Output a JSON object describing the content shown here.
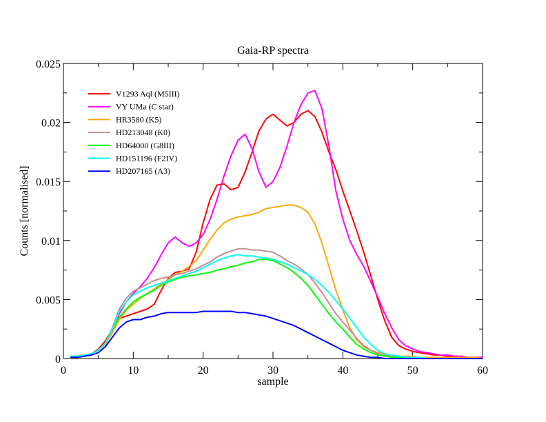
{
  "chart_data": {
    "type": "line",
    "title": "Gaia-RP spectra",
    "xlabel": "sample",
    "ylabel": "Counts [normalised]",
    "xlim": [
      0,
      60
    ],
    "ylim": [
      0,
      0.025
    ],
    "x_ticks": [
      0,
      10,
      20,
      30,
      40,
      50,
      60
    ],
    "x_tick_labels": [
      "0",
      "10",
      "20",
      "30",
      "40",
      "50",
      "60"
    ],
    "y_ticks": [
      0,
      0.005,
      0.01,
      0.015,
      0.02,
      0.025
    ],
    "y_tick_labels": [
      "0",
      "0.005",
      "0.01",
      "0.015",
      "0.02",
      "0.025"
    ],
    "grid": false,
    "legend_position": "top-left",
    "x": [
      1,
      2,
      3,
      4,
      5,
      6,
      7,
      8,
      9,
      10,
      11,
      12,
      13,
      14,
      15,
      16,
      17,
      18,
      19,
      20,
      21,
      22,
      23,
      24,
      25,
      26,
      27,
      28,
      29,
      30,
      31,
      32,
      33,
      34,
      35,
      36,
      37,
      38,
      39,
      40,
      41,
      42,
      43,
      44,
      45,
      46,
      47,
      48,
      49,
      50,
      51,
      52,
      53,
      54,
      55,
      56,
      57,
      58,
      59,
      60
    ],
    "series": [
      {
        "name": "V1293 Aql (M5III)",
        "color": "#ff0000",
        "values": [
          0.0002,
          0.0002,
          0.0003,
          0.0004,
          0.0008,
          0.0015,
          0.0025,
          0.0034,
          0.0036,
          0.0038,
          0.004,
          0.0042,
          0.0046,
          0.0058,
          0.0068,
          0.0073,
          0.0074,
          0.0076,
          0.009,
          0.0115,
          0.0135,
          0.0147,
          0.0148,
          0.0143,
          0.0145,
          0.0158,
          0.0175,
          0.0193,
          0.0203,
          0.0207,
          0.0202,
          0.0197,
          0.02,
          0.0207,
          0.021,
          0.0205,
          0.0192,
          0.0175,
          0.016,
          0.0142,
          0.0125,
          0.0108,
          0.009,
          0.007,
          0.005,
          0.0032,
          0.0018,
          0.0011,
          0.0008,
          0.0006,
          0.0005,
          0.0004,
          0.0003,
          0.0003,
          0.0002,
          0.0002,
          0.0002,
          0.0001,
          0.0001,
          0.0001
        ]
      },
      {
        "name": "VY UMa (C star)",
        "color": "#ff00ff",
        "values": [
          0.0002,
          0.0002,
          0.0003,
          0.0004,
          0.0007,
          0.0012,
          0.0022,
          0.0038,
          0.0048,
          0.0055,
          0.0061,
          0.0068,
          0.0077,
          0.0088,
          0.0098,
          0.0103,
          0.0098,
          0.0095,
          0.0098,
          0.0105,
          0.0118,
          0.0135,
          0.0155,
          0.0172,
          0.0185,
          0.019,
          0.0178,
          0.0158,
          0.0145,
          0.015,
          0.0162,
          0.018,
          0.02,
          0.0215,
          0.0225,
          0.0227,
          0.0212,
          0.018,
          0.0142,
          0.0118,
          0.01,
          0.0088,
          0.0078,
          0.0065,
          0.0052,
          0.0038,
          0.0026,
          0.0016,
          0.0011,
          0.0008,
          0.0006,
          0.0005,
          0.0004,
          0.0003,
          0.0003,
          0.0002,
          0.0002,
          0.0001,
          0.0001,
          0.0001
        ]
      },
      {
        "name": "HR3580 (K5)",
        "color": "#ffa500",
        "values": [
          0.0002,
          0.0002,
          0.0003,
          0.0004,
          0.0007,
          0.0012,
          0.0022,
          0.0033,
          0.0041,
          0.0046,
          0.0051,
          0.0055,
          0.0059,
          0.0063,
          0.0067,
          0.0071,
          0.0074,
          0.0078,
          0.0083,
          0.0092,
          0.0101,
          0.0109,
          0.0115,
          0.0118,
          0.012,
          0.0121,
          0.0122,
          0.0124,
          0.0127,
          0.0128,
          0.0129,
          0.013,
          0.013,
          0.0128,
          0.0124,
          0.0114,
          0.0098,
          0.0078,
          0.0058,
          0.0041,
          0.0026,
          0.0016,
          0.001,
          0.0007,
          0.0005,
          0.0004,
          0.0003,
          0.0002,
          0.0002,
          0.0002,
          0.0001,
          0.0001,
          0.0001,
          0.0001,
          0.0001,
          0.0001,
          0.0001,
          0.0001,
          0.0001,
          0.0
        ]
      },
      {
        "name": "HD213048 (K0)",
        "color": "#bc8f8f",
        "values": [
          0.0002,
          0.0002,
          0.0003,
          0.0004,
          0.0007,
          0.0013,
          0.0026,
          0.0042,
          0.0051,
          0.0057,
          0.006,
          0.0063,
          0.0066,
          0.0068,
          0.0069,
          0.0071,
          0.0072,
          0.0074,
          0.0076,
          0.0079,
          0.0082,
          0.0086,
          0.0089,
          0.0091,
          0.0093,
          0.0093,
          0.0092,
          0.0092,
          0.0091,
          0.009,
          0.0087,
          0.0083,
          0.008,
          0.0076,
          0.0071,
          0.0064,
          0.0056,
          0.0047,
          0.0038,
          0.0031,
          0.0024,
          0.0017,
          0.0011,
          0.0007,
          0.0004,
          0.0003,
          0.0002,
          0.0001,
          0.0001,
          0.0001,
          0.0001,
          0.0,
          0.0,
          0.0,
          0.0,
          0.0,
          0.0,
          0.0,
          0.0,
          0.0
        ]
      },
      {
        "name": "HD64000 (G8III)",
        "color": "#00ff00",
        "values": [
          0.0002,
          0.0002,
          0.0003,
          0.0004,
          0.0007,
          0.0013,
          0.0025,
          0.0035,
          0.0042,
          0.0048,
          0.0052,
          0.0055,
          0.0058,
          0.0062,
          0.0065,
          0.0067,
          0.0069,
          0.007,
          0.0071,
          0.0072,
          0.0073,
          0.0075,
          0.0076,
          0.0078,
          0.0079,
          0.0081,
          0.0082,
          0.0084,
          0.0084,
          0.0083,
          0.008,
          0.0077,
          0.0073,
          0.0068,
          0.0062,
          0.0054,
          0.0046,
          0.0038,
          0.0031,
          0.0025,
          0.0018,
          0.0012,
          0.0008,
          0.0005,
          0.0003,
          0.0002,
          0.0001,
          0.0001,
          0.0001,
          0.0,
          0.0,
          0.0,
          0.0,
          0.0,
          0.0,
          0.0,
          0.0,
          0.0,
          0.0,
          0.0
        ]
      },
      {
        "name": "HD151196 (F2IV)",
        "color": "#00ffff",
        "values": [
          0.0002,
          0.0002,
          0.0003,
          0.0004,
          0.0007,
          0.0013,
          0.0025,
          0.004,
          0.0048,
          0.0054,
          0.0057,
          0.006,
          0.0062,
          0.0064,
          0.0066,
          0.0068,
          0.007,
          0.0072,
          0.0074,
          0.0077,
          0.008,
          0.0083,
          0.0085,
          0.0087,
          0.0088,
          0.0087,
          0.0087,
          0.0086,
          0.0085,
          0.0084,
          0.0082,
          0.008,
          0.0077,
          0.0074,
          0.0071,
          0.0067,
          0.0062,
          0.0056,
          0.0049,
          0.0042,
          0.0034,
          0.0026,
          0.0018,
          0.0012,
          0.0007,
          0.0004,
          0.0003,
          0.0002,
          0.0001,
          0.0001,
          0.0001,
          0.0,
          0.0,
          0.0,
          0.0,
          0.0,
          0.0,
          0.0,
          0.0,
          0.0
        ]
      },
      {
        "name": "HD207165 (A3)",
        "color": "#0000ff",
        "values": [
          0.0001,
          0.0001,
          0.0002,
          0.0003,
          0.0005,
          0.001,
          0.0018,
          0.0026,
          0.0031,
          0.0033,
          0.0033,
          0.0035,
          0.0036,
          0.0038,
          0.0039,
          0.0039,
          0.0039,
          0.0039,
          0.0039,
          0.004,
          0.004,
          0.004,
          0.004,
          0.004,
          0.0039,
          0.0039,
          0.0038,
          0.0037,
          0.0036,
          0.0034,
          0.0032,
          0.003,
          0.0028,
          0.0025,
          0.0022,
          0.0019,
          0.0016,
          0.0013,
          0.001,
          0.0007,
          0.0005,
          0.0003,
          0.0002,
          0.0001,
          0.0001,
          0.0,
          0.0,
          0.0,
          0.0,
          0.0,
          0.0,
          0.0,
          0.0,
          0.0,
          0.0,
          0.0,
          0.0,
          0.0,
          0.0,
          0.0
        ]
      }
    ]
  }
}
